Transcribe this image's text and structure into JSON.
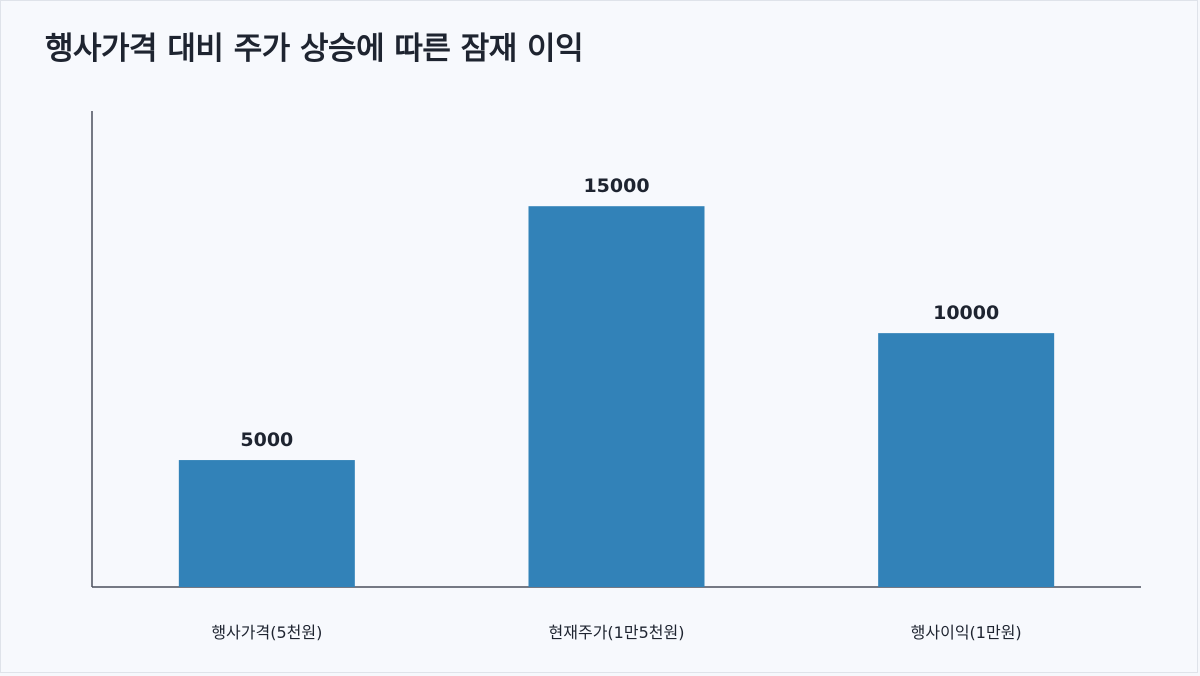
{
  "chart_data": {
    "type": "bar",
    "title": "행사가격 대비 주가 상승에 따른 잠재 이익",
    "categories": [
      "행사가격(5천원)",
      "현재주가(1만5천원)",
      "행사이익(1만원)"
    ],
    "values": [
      5000,
      15000,
      10000
    ],
    "data_labels": [
      "5000",
      "15000",
      "10000"
    ],
    "xlabel": "",
    "ylabel": "",
    "ylim": [
      0,
      18750
    ],
    "grid": false,
    "legend": "none",
    "bar_color": "#3282b8",
    "axis_color": "#4a4f5c"
  }
}
